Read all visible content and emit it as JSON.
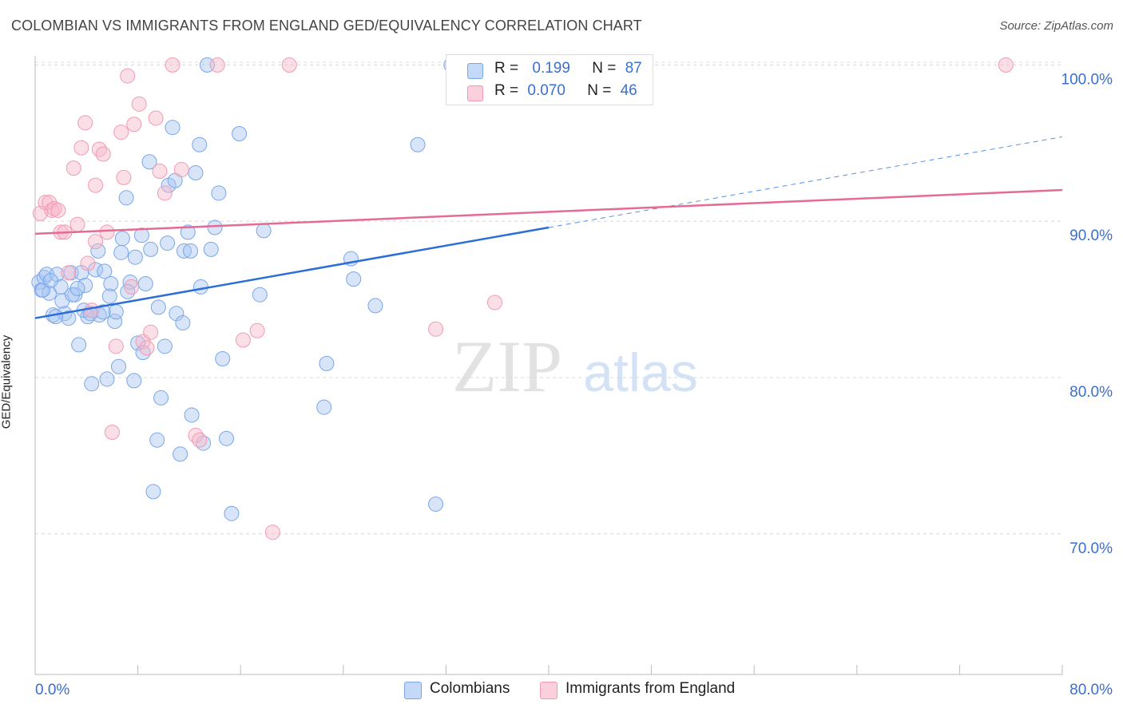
{
  "title": "COLOMBIAN VS IMMIGRANTS FROM ENGLAND GED/EQUIVALENCY CORRELATION CHART",
  "source": "Source: ZipAtlas.com",
  "watermark": {
    "zip": "ZIP",
    "atlas": "atlas"
  },
  "legend": {
    "r_label": "R =",
    "n_label": "N =",
    "rows": [
      {
        "r": "0.199",
        "n": "87",
        "color": "#a9c6f2"
      },
      {
        "r": "0.070",
        "n": "46",
        "color": "#f6b8c9"
      }
    ]
  },
  "bottom_legend": [
    {
      "label": "Colombians",
      "color": "#a9c6f2"
    },
    {
      "label": "Immigrants from England",
      "color": "#f6b8c9"
    }
  ],
  "chart_data": {
    "type": "scatter",
    "title": "COLOMBIAN VS IMMIGRANTS FROM ENGLAND GED/EQUIVALENCY CORRELATION CHART",
    "xlabel": "",
    "ylabel": "GED/Equivalency",
    "xlim": [
      0,
      80
    ],
    "ylim": [
      61,
      101.5
    ],
    "x_tick_labels": [
      "0.0%",
      "80.0%"
    ],
    "y_ticks": [
      70,
      80,
      90,
      100
    ],
    "y_tick_labels": [
      "70.0%",
      "80.0%",
      "90.0%",
      "100.0%"
    ],
    "series": [
      {
        "name": "Colombians",
        "color": "#7aa6e8",
        "r": 0.199,
        "n": 87,
        "trend": {
          "x0": 0,
          "y0": 83.8,
          "x1": 40,
          "y1": 89.6,
          "dash_x1": 80,
          "dash_y1": 95.4
        },
        "points": [
          [
            0.3,
            86.1
          ],
          [
            0.5,
            85.6
          ],
          [
            0.7,
            86.4
          ],
          [
            0.9,
            86.6
          ],
          [
            1.1,
            85.4
          ],
          [
            1.4,
            84.0
          ],
          [
            1.7,
            86.6
          ],
          [
            2.0,
            85.8
          ],
          [
            2.3,
            84.1
          ],
          [
            2.6,
            83.8
          ],
          [
            2.8,
            86.7
          ],
          [
            3.1,
            85.3
          ],
          [
            3.4,
            82.1
          ],
          [
            3.6,
            86.7
          ],
          [
            3.9,
            85.9
          ],
          [
            4.1,
            83.9
          ],
          [
            4.4,
            79.6
          ],
          [
            4.7,
            86.9
          ],
          [
            5.0,
            84.0
          ],
          [
            5.3,
            84.2
          ],
          [
            5.6,
            79.9
          ],
          [
            5.9,
            86.0
          ],
          [
            6.2,
            83.6
          ],
          [
            6.5,
            80.7
          ],
          [
            6.8,
            88.9
          ],
          [
            7.1,
            91.5
          ],
          [
            7.4,
            86.1
          ],
          [
            7.7,
            79.8
          ],
          [
            8.0,
            82.2
          ],
          [
            8.3,
            89.1
          ],
          [
            8.6,
            86.0
          ],
          [
            8.9,
            93.8
          ],
          [
            9.2,
            72.7
          ],
          [
            9.5,
            76.0
          ],
          [
            9.8,
            78.7
          ],
          [
            10.1,
            82.0
          ],
          [
            10.4,
            92.3
          ],
          [
            10.7,
            96.0
          ],
          [
            11.0,
            84.1
          ],
          [
            11.3,
            75.1
          ],
          [
            11.6,
            88.1
          ],
          [
            11.9,
            89.3
          ],
          [
            12.2,
            77.6
          ],
          [
            12.5,
            93.1
          ],
          [
            12.8,
            94.9
          ],
          [
            13.1,
            75.8
          ],
          [
            13.4,
            100.0
          ],
          [
            13.7,
            88.2
          ],
          [
            14.0,
            89.6
          ],
          [
            14.3,
            91.8
          ],
          [
            14.6,
            81.2
          ],
          [
            14.9,
            76.1
          ],
          [
            15.3,
            71.3
          ],
          [
            15.9,
            95.6
          ],
          [
            17.5,
            85.3
          ],
          [
            17.8,
            89.4
          ],
          [
            22.5,
            78.1
          ],
          [
            22.7,
            80.9
          ],
          [
            24.6,
            87.6
          ],
          [
            24.8,
            86.3
          ],
          [
            26.5,
            84.6
          ],
          [
            29.8,
            94.9
          ],
          [
            31.2,
            71.9
          ],
          [
            32.4,
            100.0
          ],
          [
            0.6,
            85.6
          ],
          [
            1.2,
            86.2
          ],
          [
            1.6,
            83.9
          ],
          [
            2.1,
            84.9
          ],
          [
            2.9,
            85.3
          ],
          [
            3.3,
            85.7
          ],
          [
            3.8,
            84.3
          ],
          [
            4.3,
            84.1
          ],
          [
            4.9,
            88.1
          ],
          [
            5.4,
            86.8
          ],
          [
            5.8,
            85.2
          ],
          [
            6.3,
            84.2
          ],
          [
            6.7,
            88.0
          ],
          [
            7.2,
            85.5
          ],
          [
            7.8,
            87.7
          ],
          [
            8.4,
            81.6
          ],
          [
            9.0,
            88.2
          ],
          [
            9.6,
            84.5
          ],
          [
            10.3,
            88.6
          ],
          [
            10.9,
            92.6
          ],
          [
            11.5,
            83.5
          ],
          [
            12.1,
            88.1
          ],
          [
            12.9,
            85.8
          ]
        ]
      },
      {
        "name": "Immigrants from England",
        "color": "#f19ab3",
        "r": 0.07,
        "n": 46,
        "trend": {
          "x0": 0,
          "y0": 89.2,
          "x1": 80,
          "y1": 92.0
        },
        "points": [
          [
            0.4,
            90.5
          ],
          [
            0.8,
            91.2
          ],
          [
            1.1,
            91.2
          ],
          [
            1.3,
            90.7
          ],
          [
            1.5,
            90.8
          ],
          [
            1.8,
            90.7
          ],
          [
            2.0,
            89.3
          ],
          [
            2.3,
            89.3
          ],
          [
            2.6,
            86.7
          ],
          [
            3.0,
            93.4
          ],
          [
            3.3,
            89.8
          ],
          [
            3.6,
            94.7
          ],
          [
            3.9,
            96.3
          ],
          [
            4.1,
            87.3
          ],
          [
            4.4,
            84.3
          ],
          [
            4.7,
            92.3
          ],
          [
            5.0,
            94.6
          ],
          [
            5.3,
            94.3
          ],
          [
            5.6,
            89.3
          ],
          [
            6.0,
            76.5
          ],
          [
            6.3,
            82.0
          ],
          [
            6.7,
            95.7
          ],
          [
            6.9,
            92.8
          ],
          [
            7.2,
            99.3
          ],
          [
            7.5,
            85.8
          ],
          [
            7.7,
            96.2
          ],
          [
            8.1,
            97.5
          ],
          [
            8.4,
            82.3
          ],
          [
            8.7,
            81.9
          ],
          [
            9.0,
            82.9
          ],
          [
            9.4,
            96.6
          ],
          [
            9.7,
            93.2
          ],
          [
            10.1,
            91.8
          ],
          [
            10.7,
            100.0
          ],
          [
            11.4,
            93.3
          ],
          [
            12.5,
            76.3
          ],
          [
            12.8,
            76.0
          ],
          [
            14.2,
            100.0
          ],
          [
            16.2,
            82.4
          ],
          [
            17.3,
            83.0
          ],
          [
            18.5,
            70.1
          ],
          [
            19.8,
            100.0
          ],
          [
            31.2,
            83.1
          ],
          [
            35.8,
            84.8
          ],
          [
            75.6,
            100.0
          ],
          [
            4.7,
            88.7
          ]
        ]
      }
    ]
  }
}
